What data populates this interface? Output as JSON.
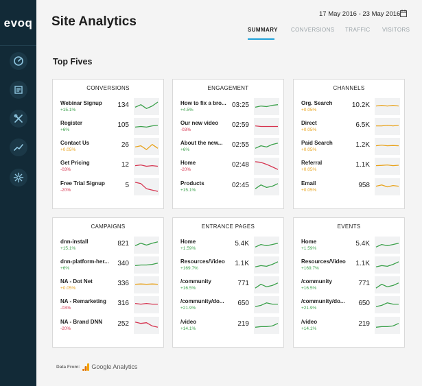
{
  "app": {
    "logo": "evoq"
  },
  "sidebar": {
    "items": [
      {
        "icon": "dashboard-icon"
      },
      {
        "icon": "content-icon"
      },
      {
        "icon": "tools-icon"
      },
      {
        "icon": "analytics-icon"
      },
      {
        "icon": "settings-icon"
      }
    ]
  },
  "header": {
    "title": "Site Analytics",
    "date_range": "17 May 2016 - 23 May 2016",
    "tabs": [
      {
        "label": "SUMMARY",
        "active": true
      },
      {
        "label": "CONVERSIONS"
      },
      {
        "label": "TRAFFIC"
      },
      {
        "label": "VISITORS"
      }
    ]
  },
  "section_title": "Top Fives",
  "colors": {
    "up": "#3aa04a",
    "down": "#d6334f",
    "flat": "#e8a21a",
    "accent": "#1ca0d8",
    "sidebar": "#122a37"
  },
  "cards": [
    {
      "title": "CONVERSIONS",
      "rows": [
        {
          "name": "Webinar Signup",
          "change": "+15.1%",
          "trend": "up",
          "value": "134",
          "spark": [
            10,
            12,
            9,
            11,
            14
          ]
        },
        {
          "name": "Register",
          "change": "+6%",
          "trend": "up",
          "value": "105",
          "spark": [
            10,
            10.5,
            10,
            11,
            11.5
          ]
        },
        {
          "name": "Contact Us",
          "change": "+0.05%",
          "trend": "flat",
          "value": "26",
          "spark": [
            10,
            11,
            8,
            12,
            9
          ]
        },
        {
          "name": "Get Pricing",
          "change": "-03%",
          "trend": "down",
          "value": "12",
          "spark": [
            11,
            11.5,
            10.5,
            11,
            10.5
          ]
        },
        {
          "name": "Free Trial Signup",
          "change": "-20%",
          "trend": "down",
          "value": "5",
          "spark": [
            14,
            13,
            9,
            8,
            7
          ]
        }
      ]
    },
    {
      "title": "ENGAGEMENT",
      "rows": [
        {
          "name": "How to fix a bro...",
          "change": "+4.5%",
          "trend": "up",
          "value": "03:25",
          "spark": [
            10,
            11,
            10.5,
            11.5,
            12
          ]
        },
        {
          "name": "Our new video",
          "change": "-03%",
          "trend": "down",
          "value": "02:59",
          "spark": [
            11,
            10.5,
            10.5,
            10.5,
            10.5
          ]
        },
        {
          "name": "About the new...",
          "change": "+6%",
          "trend": "up",
          "value": "02:55",
          "spark": [
            9,
            11,
            10,
            12,
            13
          ]
        },
        {
          "name": "Home",
          "change": "-20%",
          "trend": "down",
          "value": "02:48",
          "spark": [
            14,
            13.5,
            12,
            10,
            8
          ]
        },
        {
          "name": "Products",
          "change": "+15.1%",
          "trend": "up",
          "value": "02:45",
          "spark": [
            9,
            12,
            10,
            11,
            13
          ]
        }
      ]
    },
    {
      "title": "CHANNELS",
      "rows": [
        {
          "name": "Org. Search",
          "change": "+0.05%",
          "trend": "flat",
          "value": "10.2K",
          "spark": [
            11,
            11.5,
            11,
            11.5,
            11
          ]
        },
        {
          "name": "Direct",
          "change": "+0.05%",
          "trend": "flat",
          "value": "6.5K",
          "spark": [
            11,
            11,
            11.5,
            11,
            11.5
          ]
        },
        {
          "name": "Paid Search",
          "change": "+0.05%",
          "trend": "flat",
          "value": "1.2K",
          "spark": [
            11,
            11.5,
            11,
            11.2,
            11
          ]
        },
        {
          "name": "Referral",
          "change": "+0.05%",
          "trend": "flat",
          "value": "1.1K",
          "spark": [
            11,
            11.2,
            11.5,
            11,
            11.3
          ]
        },
        {
          "name": "Email",
          "change": "+0.05%",
          "trend": "flat",
          "value": "958",
          "spark": [
            11,
            12,
            10.5,
            11.5,
            11
          ]
        }
      ]
    },
    {
      "title": "CAMPAIGNS",
      "rows": [
        {
          "name": "dnn-install",
          "change": "+15.1%",
          "trend": "up",
          "value": "821",
          "spark": [
            10,
            12,
            10.5,
            12,
            13
          ]
        },
        {
          "name": "dnn-platform-her...",
          "change": "+6%",
          "trend": "up",
          "value": "340",
          "spark": [
            10,
            10.5,
            10.5,
            11,
            12
          ]
        },
        {
          "name": "NA - Dot Net",
          "change": "+0.05%",
          "trend": "flat",
          "value": "336",
          "spark": [
            11,
            11.2,
            11,
            11.2,
            11
          ]
        },
        {
          "name": "NA - Remarketing",
          "change": "-03%",
          "trend": "down",
          "value": "316",
          "spark": [
            11.5,
            11,
            11.5,
            11,
            11
          ]
        },
        {
          "name": "NA - Brand DNN",
          "change": "-20%",
          "trend": "down",
          "value": "252",
          "spark": [
            13,
            12,
            12.5,
            10,
            9
          ]
        }
      ]
    },
    {
      "title": "ENTRANCE PAGES",
      "rows": [
        {
          "name": "Home",
          "change": "+1.59%",
          "trend": "up",
          "value": "5.4K",
          "spark": [
            9,
            11,
            10,
            11,
            12
          ]
        },
        {
          "name": "Resources/Video",
          "change": "+169.7%",
          "trend": "up",
          "value": "1.1K",
          "spark": [
            9,
            10,
            9.5,
            11,
            13
          ]
        },
        {
          "name": "/community",
          "change": "+16.5%",
          "trend": "up",
          "value": "771",
          "spark": [
            8,
            11,
            9,
            10,
            12
          ]
        },
        {
          "name": "/community/do...",
          "change": "+21.9%",
          "trend": "up",
          "value": "650",
          "spark": [
            9,
            10,
            12,
            11,
            11
          ]
        },
        {
          "name": "/video",
          "change": "+14.1%",
          "trend": "up",
          "value": "219",
          "spark": [
            9,
            9.5,
            9.5,
            10,
            12
          ]
        }
      ]
    },
    {
      "title": "EVENTS",
      "rows": [
        {
          "name": "Home",
          "change": "+1.59%",
          "trend": "up",
          "value": "5.4K",
          "spark": [
            9,
            11,
            10,
            11,
            12
          ]
        },
        {
          "name": "Resources/Video",
          "change": "+169.7%",
          "trend": "up",
          "value": "1.1K",
          "spark": [
            9,
            10,
            9.5,
            11,
            13
          ]
        },
        {
          "name": "/community",
          "change": "+16.5%",
          "trend": "up",
          "value": "771",
          "spark": [
            8,
            11,
            9,
            10,
            12
          ]
        },
        {
          "name": "/community/do...",
          "change": "+21.9%",
          "trend": "up",
          "value": "650",
          "spark": [
            9,
            10,
            12,
            11,
            11
          ]
        },
        {
          "name": "/video",
          "change": "+14.1%",
          "trend": "up",
          "value": "219",
          "spark": [
            9,
            9.5,
            9.5,
            10,
            12
          ]
        }
      ]
    }
  ],
  "footer": {
    "label": "Data From:",
    "source": "Google Analytics"
  }
}
